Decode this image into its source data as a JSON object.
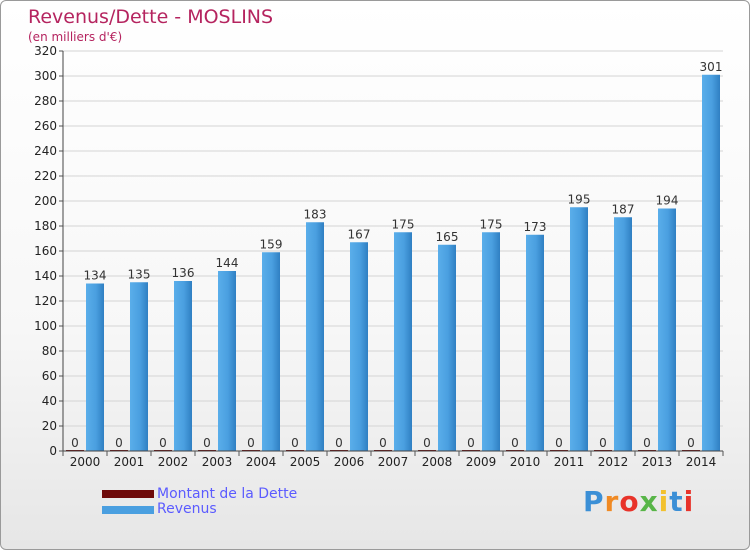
{
  "header": {
    "title": "Revenus/Dette - MOSLINS",
    "subtitle": "(en milliers d'€)"
  },
  "legend": {
    "debt_label": "Montant de la Dette",
    "revenue_label": "Revenus"
  },
  "logo": {
    "text": "Proxiti"
  },
  "colors": {
    "revenue": "#4a9fe0",
    "debt": "#6e0a0a",
    "title": "#b5245f"
  },
  "chart_data": {
    "type": "bar",
    "title": "Revenus/Dette - MOSLINS",
    "ylabel": "(en milliers d'€)",
    "categories": [
      "2000",
      "2001",
      "2002",
      "2003",
      "2004",
      "2005",
      "2006",
      "2007",
      "2008",
      "2009",
      "2010",
      "2011",
      "2012",
      "2013",
      "2014"
    ],
    "series": [
      {
        "name": "Montant de la Dette",
        "values": [
          0,
          0,
          0,
          0,
          0,
          0,
          0,
          0,
          0,
          0,
          0,
          0,
          0,
          0,
          0
        ]
      },
      {
        "name": "Revenus",
        "values": [
          134,
          135,
          136,
          144,
          159,
          183,
          167,
          175,
          165,
          175,
          173,
          195,
          187,
          194,
          301
        ]
      }
    ],
    "ylim": [
      0,
      320
    ],
    "yticks": [
      0,
      20,
      40,
      60,
      80,
      100,
      120,
      140,
      160,
      180,
      200,
      220,
      240,
      260,
      280,
      300,
      320
    ],
    "legend_position": "bottom-left"
  }
}
